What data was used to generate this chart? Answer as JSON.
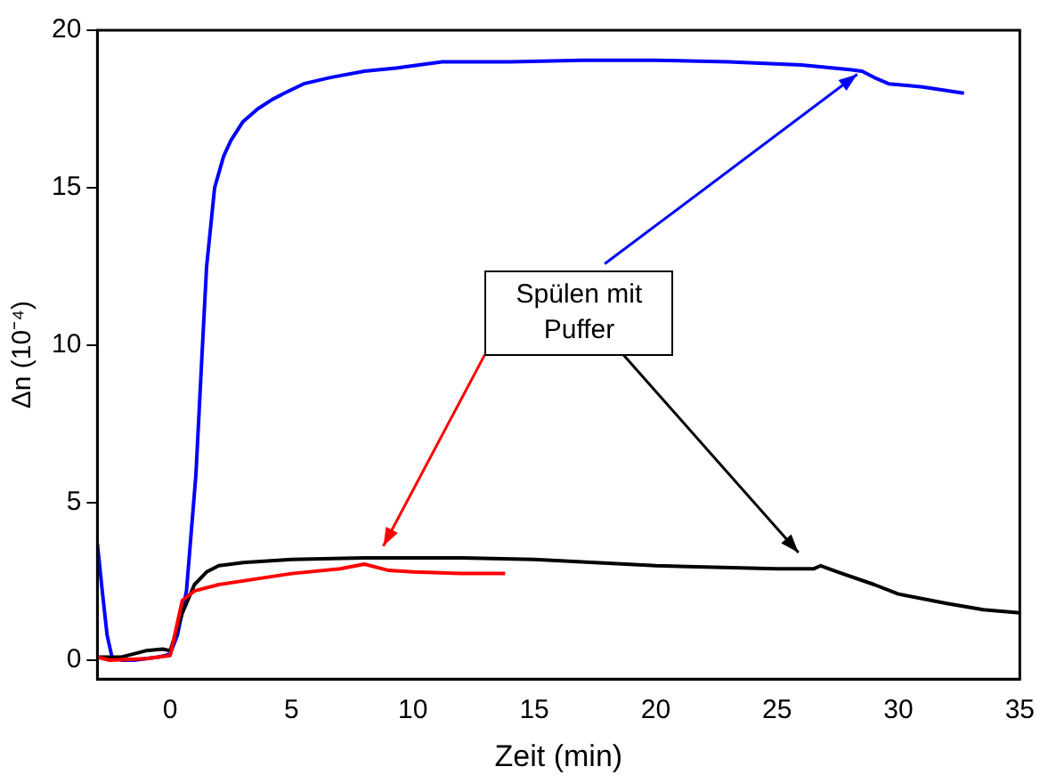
{
  "chart_data": {
    "type": "line",
    "xlabel": "Zeit (min)",
    "ylabel": "Δn (10⁻⁴)",
    "xlim": [
      -3,
      35
    ],
    "ylim": [
      -0.6,
      20
    ],
    "xticks": [
      0,
      5,
      10,
      15,
      20,
      25,
      30,
      35
    ],
    "yticks": [
      0,
      5,
      10,
      15,
      20
    ],
    "grid": false,
    "legend": false,
    "marker": "none",
    "line_style": "solid",
    "annotations": [
      {
        "text": "Spülen mit Puffer",
        "x": 28.3,
        "y": 18.6
      }
    ],
    "series": [
      {
        "color": "#0000ff",
        "x": [
          -3,
          -2.8,
          -2.6,
          -2.4,
          -2,
          -1.5,
          -1,
          -0.5,
          -0.2,
          0,
          0.3,
          0.67,
          1.06,
          1.31,
          1.5,
          1.83,
          2.2,
          2.5,
          3,
          3.6,
          4.2,
          4.7,
          5.5,
          6.6,
          8,
          9.3,
          11.2,
          14,
          17,
          20,
          23,
          26,
          28,
          28.5,
          29,
          29.6,
          31,
          32.7
        ],
        "values": [
          3.7,
          2.2,
          0.8,
          0.1,
          0,
          0,
          0.05,
          0.1,
          0.15,
          0.2,
          0.8,
          2.2,
          5.9,
          9.7,
          12.5,
          15,
          16,
          16.5,
          17.1,
          17.5,
          17.8,
          18,
          18.3,
          18.5,
          18.7,
          18.8,
          19,
          19,
          19.05,
          19.05,
          19,
          18.9,
          18.75,
          18.7,
          18.5,
          18.3,
          18.2,
          18
        ]
      },
      {
        "color": "#000000",
        "x": [
          -3,
          -2,
          -1.5,
          -1,
          -0.3,
          0,
          0.5,
          1,
          1.5,
          2,
          3,
          5,
          8,
          12,
          15,
          20,
          25,
          26.5,
          26.8,
          27.5,
          29,
          30,
          32,
          33.5,
          35
        ],
        "values": [
          0.1,
          0.1,
          0.2,
          0.3,
          0.35,
          0.3,
          1.5,
          2.4,
          2.8,
          3,
          3.1,
          3.2,
          3.25,
          3.25,
          3.2,
          3,
          2.9,
          2.9,
          3,
          2.8,
          2.4,
          2.1,
          1.8,
          1.6,
          1.5
        ]
      },
      {
        "color": "#ff0000",
        "x": [
          -3,
          -2.5,
          -1,
          0,
          0.5,
          1,
          2,
          5,
          7,
          8,
          9,
          10,
          12,
          13.8
        ],
        "values": [
          0.1,
          0,
          0.05,
          0.15,
          1.9,
          2.2,
          2.4,
          2.75,
          2.9,
          3.05,
          2.85,
          2.8,
          2.75,
          2.75
        ]
      }
    ]
  }
}
